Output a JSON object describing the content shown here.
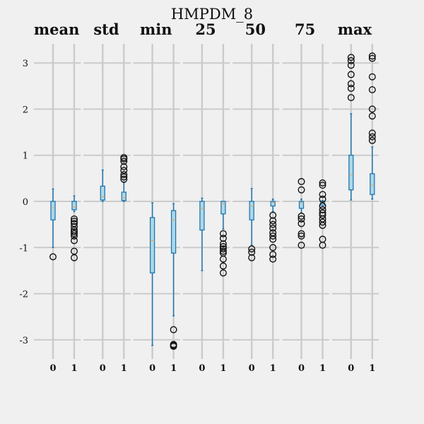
{
  "chart_data": {
    "type": "box",
    "title": "HMPDM_8",
    "ylim": [
      -3.4,
      3.3
    ],
    "yticks": [
      -3,
      -2,
      -1,
      0,
      1,
      2,
      3
    ],
    "ytick_labels": [
      "-3",
      "-2",
      "-1",
      "0",
      "1",
      "2",
      "3"
    ],
    "grid": true,
    "colors": {
      "box": "#1f77b4",
      "box_fill": "#add8e6",
      "median": "#dda15e",
      "grid": "#cbcbcb",
      "background": "#f0f0f0"
    },
    "panels": [
      {
        "title": "mean",
        "groups": [
          {
            "label": "0",
            "q1": -0.4,
            "median": -0.14,
            "q3": 0.0,
            "whislo": -1.0,
            "whishi": 0.27,
            "fliers": [
              -1.2
            ]
          },
          {
            "label": "1",
            "q1": -0.18,
            "median": -0.12,
            "q3": 0.0,
            "whislo": -0.22,
            "whishi": 0.12,
            "fliers": [
              -0.38,
              -0.43,
              -0.48,
              -0.55,
              -0.62,
              -0.66,
              -0.7,
              -0.75,
              -0.85,
              -1.08,
              -1.22
            ]
          }
        ]
      },
      {
        "title": "std",
        "groups": [
          {
            "label": "0",
            "q1": 0.03,
            "median": 0.1,
            "q3": 0.33,
            "whislo": 0.0,
            "whishi": 0.68,
            "fliers": []
          },
          {
            "label": "1",
            "q1": 0.02,
            "median": 0.08,
            "q3": 0.2,
            "whislo": 0.0,
            "whishi": 0.42,
            "fliers": [
              0.48,
              0.53,
              0.58,
              0.67,
              0.75,
              0.87,
              0.92,
              0.95
            ]
          }
        ]
      },
      {
        "title": "min",
        "groups": [
          {
            "label": "0",
            "q1": -1.55,
            "median": -0.85,
            "q3": -0.35,
            "whislo": -3.12,
            "whishi": -0.03,
            "fliers": []
          },
          {
            "label": "1",
            "q1": -1.12,
            "median": -0.4,
            "q3": -0.2,
            "whislo": -2.48,
            "whishi": -0.05,
            "fliers": [
              -2.78,
              -3.1,
              -3.12,
              -3.14
            ]
          }
        ]
      },
      {
        "title": "25",
        "groups": [
          {
            "label": "0",
            "q1": -0.62,
            "median": -0.15,
            "q3": 0.0,
            "whislo": -1.5,
            "whishi": 0.07,
            "fliers": []
          },
          {
            "label": "1",
            "q1": -0.27,
            "median": -0.05,
            "q3": 0.0,
            "whislo": -0.6,
            "whishi": 0.0,
            "fliers": [
              -0.7,
              -0.8,
              -0.92,
              -0.98,
              -1.03,
              -1.08,
              -1.12,
              -1.25,
              -1.4,
              -1.55
            ]
          }
        ]
      },
      {
        "title": "50",
        "groups": [
          {
            "label": "0",
            "q1": -0.4,
            "median": -0.1,
            "q3": 0.0,
            "whislo": -0.95,
            "whishi": 0.28,
            "fliers": [
              -1.03,
              -1.1,
              -1.22
            ]
          },
          {
            "label": "1",
            "q1": -0.1,
            "median": -0.03,
            "q3": 0.0,
            "whislo": -0.22,
            "whishi": 0.05,
            "fliers": [
              -0.3,
              -0.42,
              -0.5,
              -0.58,
              -0.68,
              -0.75,
              -0.82,
              -1.0,
              -1.15,
              -1.25
            ]
          }
        ]
      },
      {
        "title": "75",
        "groups": [
          {
            "label": "0",
            "q1": -0.15,
            "median": -0.03,
            "q3": 0.0,
            "whislo": -0.25,
            "whishi": 0.05,
            "fliers": [
              0.43,
              0.25,
              -0.32,
              -0.38,
              -0.48,
              -0.7,
              -0.75,
              -0.95
            ]
          },
          {
            "label": "1",
            "q1": -0.08,
            "median": -0.02,
            "q3": 0.0,
            "whislo": -0.12,
            "whishi": 0.02,
            "fliers": [
              0.4,
              0.35,
              0.15,
              0.05,
              -0.1,
              -0.18,
              -0.25,
              -0.3,
              -0.38,
              -0.45,
              -0.52,
              -0.82,
              -0.95
            ]
          }
        ]
      },
      {
        "title": "max",
        "groups": [
          {
            "label": "0",
            "q1": 0.25,
            "median": 0.58,
            "q3": 1.0,
            "whislo": 0.03,
            "whishi": 1.9,
            "fliers": [
              2.25,
              2.45,
              2.55,
              2.75,
              2.95,
              3.05,
              3.12
            ]
          },
          {
            "label": "1",
            "q1": 0.15,
            "median": 0.35,
            "q3": 0.6,
            "whislo": 0.05,
            "whishi": 1.18,
            "fliers": [
              1.32,
              1.4,
              1.48,
              1.85,
              2.0,
              2.42,
              2.7,
              3.1,
              3.15
            ]
          }
        ]
      }
    ]
  }
}
